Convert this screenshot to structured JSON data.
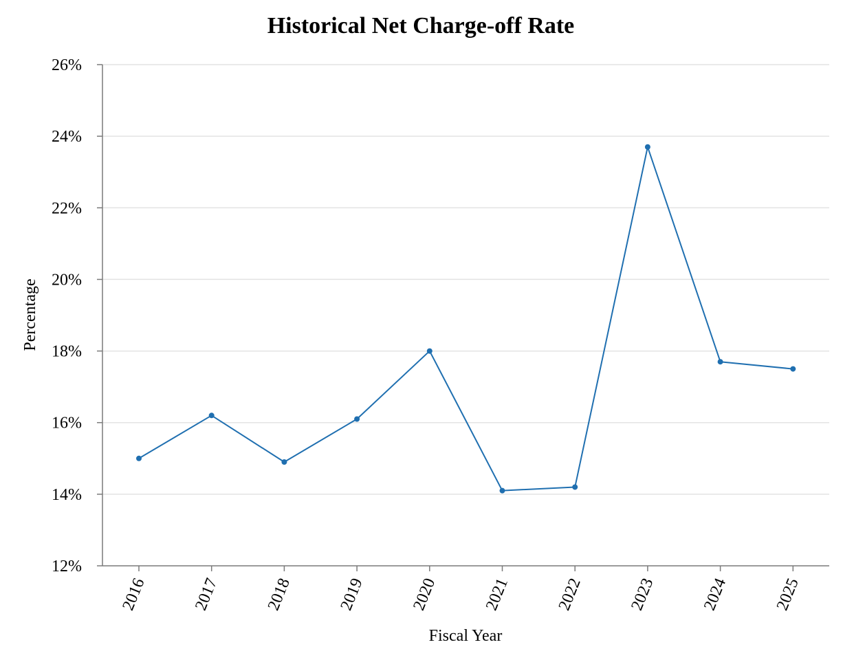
{
  "chart_data": {
    "type": "line",
    "title": "Historical Net Charge-off Rate",
    "xlabel": "Fiscal Year",
    "ylabel": "Percentage",
    "categories": [
      "2016",
      "2017",
      "2018",
      "2019",
      "2020",
      "2021",
      "2022",
      "2023",
      "2024",
      "2025"
    ],
    "series": [
      {
        "values": [
          15.0,
          16.2,
          14.9,
          16.1,
          18.0,
          14.1,
          14.2,
          23.7,
          17.7,
          17.5
        ]
      }
    ],
    "ylim": [
      12,
      26
    ],
    "yticks": [
      12,
      14,
      16,
      18,
      20,
      22,
      24,
      26
    ],
    "ytick_format": "%",
    "grid": true,
    "line_color": "#1f6fb0"
  }
}
